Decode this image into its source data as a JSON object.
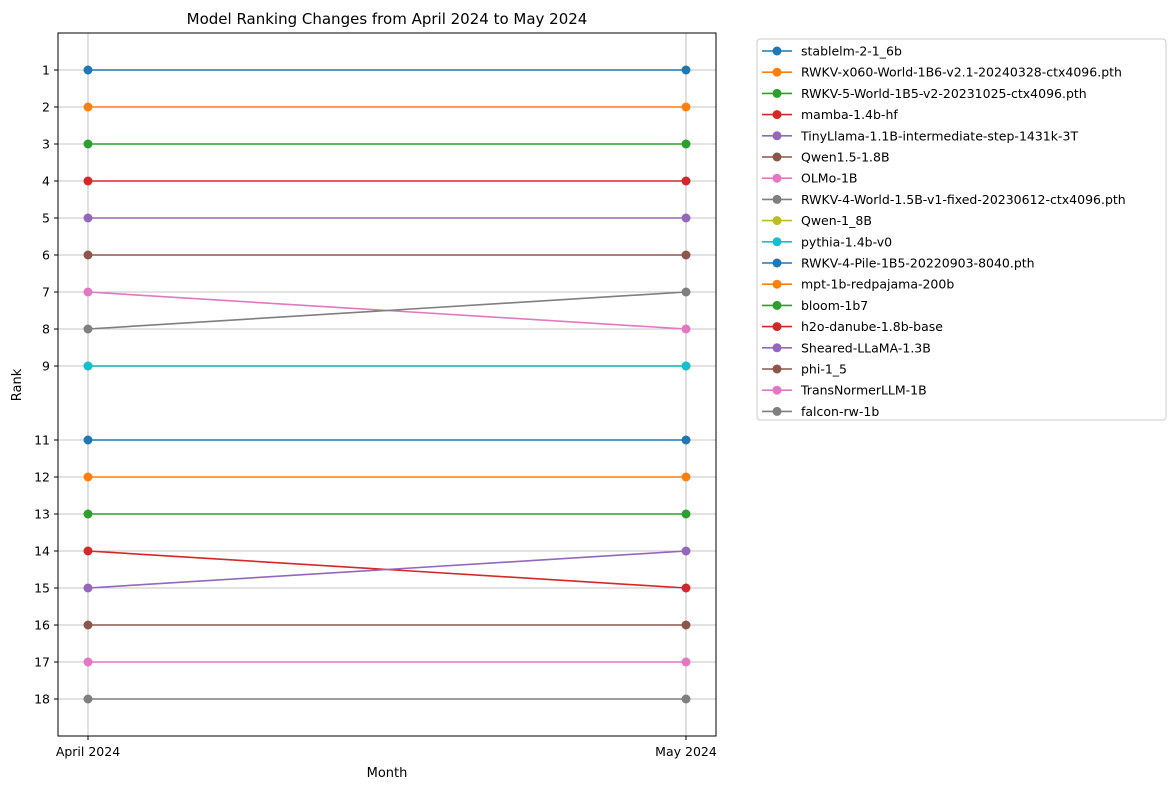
{
  "chart_data": {
    "type": "line",
    "title": "Model Ranking Changes from April 2024 to May 2024",
    "xlabel": "Month",
    "ylabel": "Rank",
    "categories": [
      "April 2024",
      "May 2024"
    ],
    "yticks": [
      1,
      2,
      3,
      4,
      5,
      6,
      7,
      8,
      9,
      11,
      12,
      13,
      14,
      15,
      16,
      17,
      18
    ],
    "ylim": [
      19,
      0
    ],
    "y_inverted": true,
    "grid": true,
    "legend_position": "outside-right",
    "series": [
      {
        "name": "stablelm-2-1_6b",
        "values": [
          1,
          1
        ],
        "color": "#1f77b4"
      },
      {
        "name": "RWKV-x060-World-1B6-v2.1-20240328-ctx4096.pth",
        "values": [
          2,
          2
        ],
        "color": "#ff7f0e"
      },
      {
        "name": "RWKV-5-World-1B5-v2-20231025-ctx4096.pth",
        "values": [
          3,
          3
        ],
        "color": "#2ca02c"
      },
      {
        "name": "mamba-1.4b-hf",
        "values": [
          4,
          4
        ],
        "color": "#d62728"
      },
      {
        "name": "TinyLlama-1.1B-intermediate-step-1431k-3T",
        "values": [
          5,
          5
        ],
        "color": "#9467bd"
      },
      {
        "name": "Qwen1.5-1.8B",
        "values": [
          6,
          6
        ],
        "color": "#8c564b"
      },
      {
        "name": "OLMo-1B",
        "values": [
          7,
          8
        ],
        "color": "#e377c2"
      },
      {
        "name": "RWKV-4-World-1.5B-v1-fixed-20230612-ctx4096.pth",
        "values": [
          8,
          7
        ],
        "color": "#7f7f7f"
      },
      {
        "name": "Qwen-1_8B",
        "values": [
          9,
          9
        ],
        "color": "#bcbd22"
      },
      {
        "name": "pythia-1.4b-v0",
        "values": [
          9,
          9
        ],
        "color": "#17becf"
      },
      {
        "name": "RWKV-4-Pile-1B5-20220903-8040.pth",
        "values": [
          11,
          11
        ],
        "color": "#1f77b4"
      },
      {
        "name": "mpt-1b-redpajama-200b",
        "values": [
          12,
          12
        ],
        "color": "#ff7f0e"
      },
      {
        "name": "bloom-1b7",
        "values": [
          13,
          13
        ],
        "color": "#2ca02c"
      },
      {
        "name": "h2o-danube-1.8b-base",
        "values": [
          14,
          15
        ],
        "color": "#d62728"
      },
      {
        "name": "Sheared-LLaMA-1.3B",
        "values": [
          15,
          14
        ],
        "color": "#9467bd"
      },
      {
        "name": "phi-1_5",
        "values": [
          16,
          16
        ],
        "color": "#8c564b"
      },
      {
        "name": "TransNormerLLM-1B",
        "values": [
          17,
          17
        ],
        "color": "#e377c2"
      },
      {
        "name": "falcon-rw-1b",
        "values": [
          18,
          18
        ],
        "color": "#7f7f7f"
      }
    ]
  }
}
